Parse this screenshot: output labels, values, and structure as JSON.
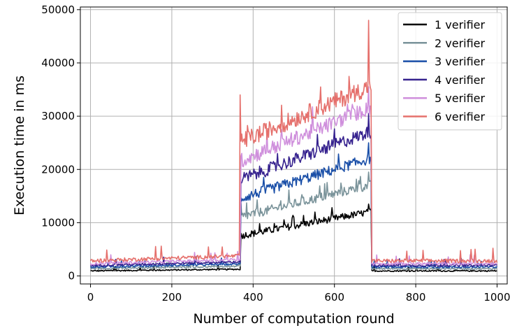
{
  "chart_data": {
    "type": "line",
    "title": "",
    "xlabel": "Number of computation round",
    "ylabel": "Execution time in ms",
    "xlim": [
      -25,
      1025
    ],
    "ylim": [
      -1500,
      50500
    ],
    "x_ticks": [
      0,
      200,
      400,
      600,
      800,
      1000
    ],
    "y_ticks": [
      0,
      10000,
      20000,
      30000,
      40000,
      50000
    ],
    "grid": true,
    "legend_position": "top-right",
    "x_range": [
      0,
      1000
    ],
    "plateau_start": 370,
    "plateau_end": 690,
    "series": [
      {
        "name": "1 verifier",
        "color": "#000000",
        "base": 900,
        "base_noise": 250,
        "plateau_start_value": 7500,
        "plateau_end_value": 12000,
        "plateau_noise": 1300,
        "peak": 13500
      },
      {
        "name": "2 verifier",
        "color": "#7a939a",
        "base": 1300,
        "base_noise": 300,
        "plateau_start_value": 11000,
        "plateau_end_value": 17000,
        "plateau_noise": 1700,
        "peak": 19500
      },
      {
        "name": "3 verifier",
        "color": "#1a4fa8",
        "base": 1600,
        "base_noise": 350,
        "plateau_start_value": 14500,
        "plateau_end_value": 22000,
        "plateau_noise": 2000,
        "peak": 25000
      },
      {
        "name": "4 verifier",
        "color": "#35218e",
        "base": 1900,
        "base_noise": 400,
        "plateau_start_value": 18000,
        "plateau_end_value": 27000,
        "plateau_noise": 2400,
        "peak": 30500
      },
      {
        "name": "5 verifier",
        "color": "#cf8fdc",
        "base": 2200,
        "base_noise": 500,
        "plateau_start_value": 21500,
        "plateau_end_value": 31500,
        "plateau_noise": 2800,
        "peak": 35500
      },
      {
        "name": "6 verifier",
        "color": "#e5706c",
        "base": 2700,
        "base_noise": 700,
        "plateau_start_value": 25000,
        "plateau_end_value": 35500,
        "plateau_noise": 3300,
        "peak": 48000,
        "spike_x": 370,
        "spike_y": 34000
      }
    ]
  }
}
